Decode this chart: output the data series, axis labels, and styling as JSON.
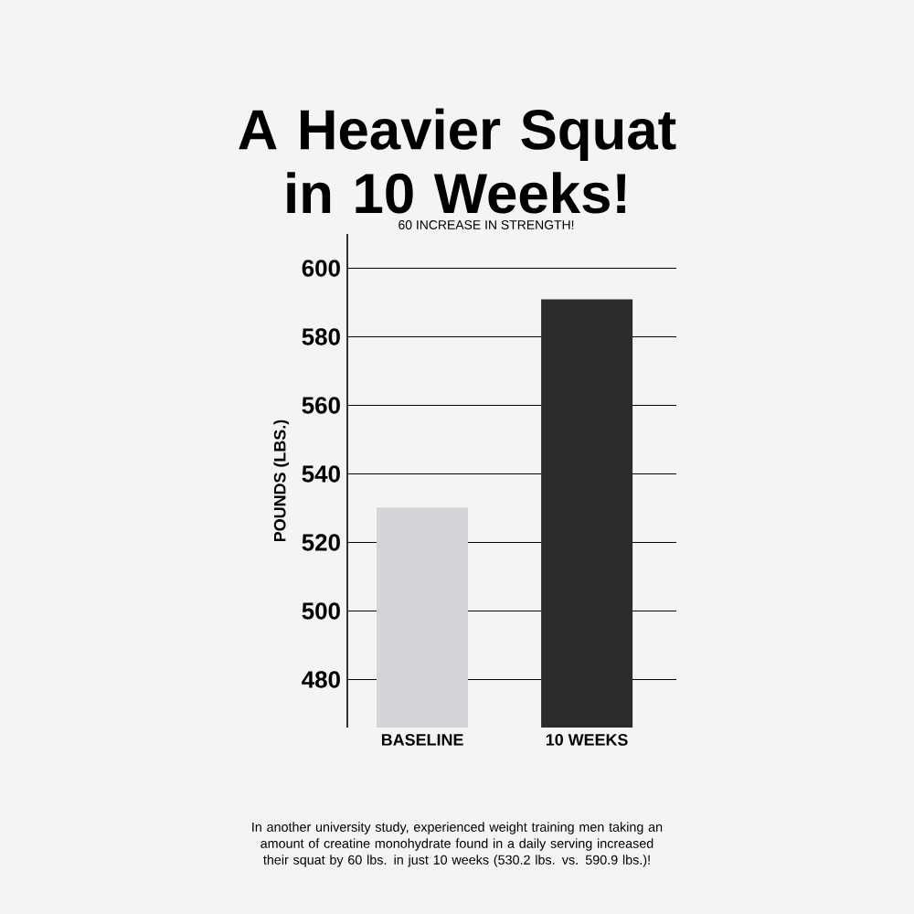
{
  "chart_data": {
    "type": "bar",
    "title": "A Heavier Squat in 10 Weeks!",
    "subtitle": "60 INCREASE IN STRENGTH!",
    "ylabel": "POUNDS (LBS.)",
    "categories": [
      "BASELINE",
      "10 WEEKS"
    ],
    "values": [
      530.2,
      590.9
    ],
    "colors": [
      "#d4d4d6",
      "#2b2b2b"
    ],
    "ylim": [
      466,
      610
    ],
    "yticks": [
      480,
      500,
      520,
      540,
      560,
      580,
      600
    ],
    "grid": "y",
    "annotations": [
      "In another university study, experienced weight training men taking an amount of creatine monohydrate found in a daily serving increased their squat by 60 lbs. in just 10 weeks (530.2 lbs. vs. 590.9 lbs.)!"
    ]
  }
}
